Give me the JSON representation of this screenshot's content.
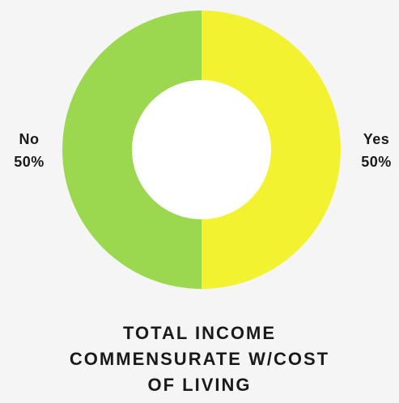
{
  "chart_data": {
    "type": "pie",
    "style": "donut",
    "title_lines": [
      "TOTAL INCOME",
      "COMMENSURATE W/COST",
      "OF LIVING"
    ],
    "slices": [
      {
        "label": "Yes",
        "value": 50,
        "value_label": "50%",
        "color": "#f2f230"
      },
      {
        "label": "No",
        "value": 50,
        "value_label": "50%",
        "color": "#9bd850"
      }
    ]
  }
}
